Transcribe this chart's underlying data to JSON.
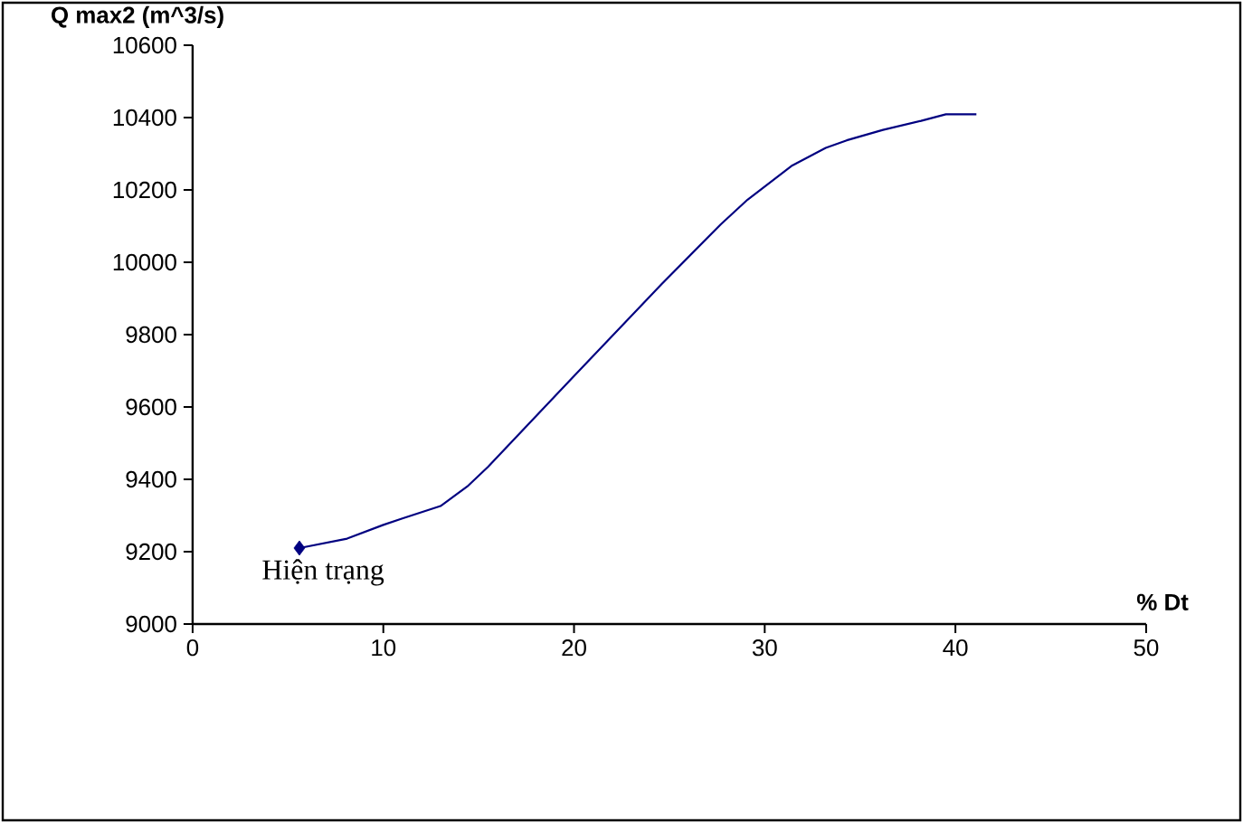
{
  "chart_data": {
    "type": "line",
    "xlabel": "% Dt",
    "ylabel": "Q max2 (m^3/s)",
    "xlim": [
      0,
      50
    ],
    "ylim": [
      9000,
      10600
    ],
    "xticks": [
      0,
      10,
      20,
      30,
      40,
      50
    ],
    "yticks": [
      9000,
      9200,
      9400,
      9600,
      9800,
      10000,
      10200,
      10400,
      10600
    ],
    "annotations": [
      {
        "text": "Hiện trạng",
        "x": 5.6,
        "y": 9210
      }
    ],
    "series": [
      {
        "type": "line",
        "color": "#000080",
        "marker": "none",
        "x": [
          5.6,
          8.1,
          10.0,
          11.0,
          13.0,
          14.4,
          15.5,
          19.9,
          24.6,
          27.7,
          29.1,
          31.4,
          33.2,
          34.3,
          36.2,
          38.2,
          39.5,
          41.1
        ],
        "values": [
          9210,
          9236,
          9274,
          9292,
          9326,
          9380,
          9435,
          9680,
          9940,
          10105,
          10173,
          10266,
          10316,
          10337,
          10366,
          10391,
          10409,
          10409
        ]
      },
      {
        "type": "scatter",
        "color": "#000080",
        "marker": "diamond",
        "x": [
          5.6
        ],
        "values": [
          9210
        ]
      }
    ]
  }
}
